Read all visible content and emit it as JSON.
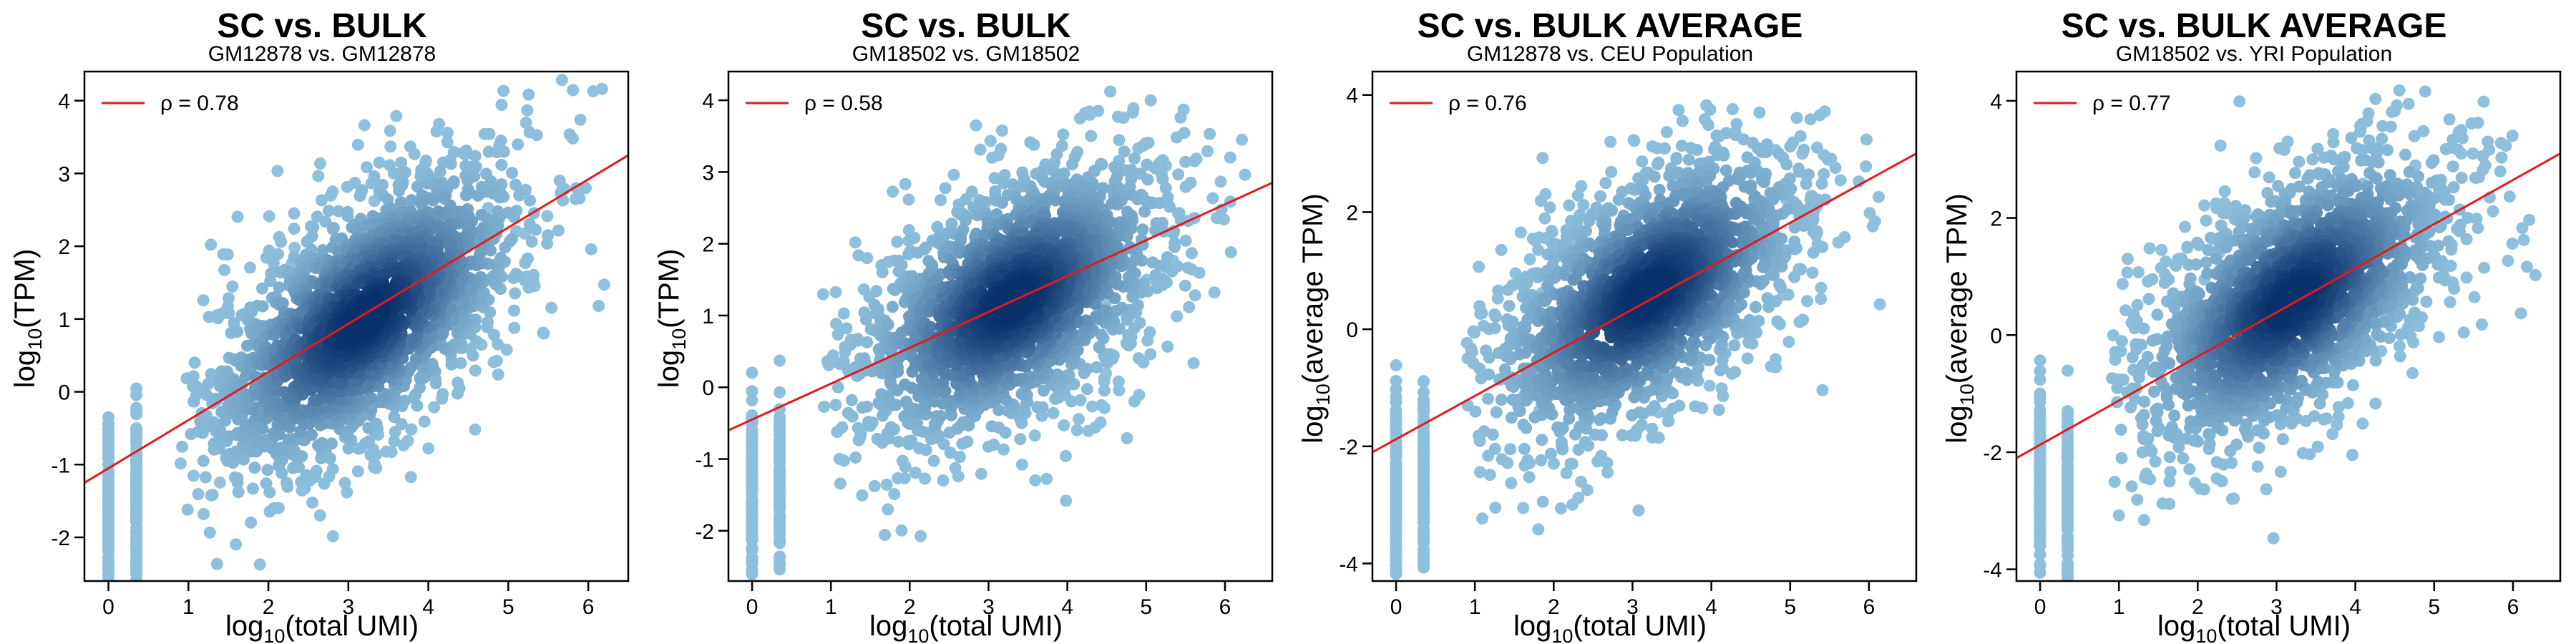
{
  "chart_data": [
    {
      "type": "scatter",
      "title": "SC vs. BULK",
      "subtitle": "GM12878 vs. GM12878",
      "xlabel": "log10(total UMI)",
      "ylabel": "log10(TPM)",
      "xlabel_parts": {
        "base": "log",
        "sub": "10",
        "rest": "(total UMI)"
      },
      "ylabel_parts": {
        "base": "log",
        "sub": "10",
        "rest": "(TPM)"
      },
      "xlim": [
        -0.3,
        6.5
      ],
      "ylim": [
        -2.6,
        4.4
      ],
      "xticks": [
        0,
        1,
        2,
        3,
        4,
        5,
        6
      ],
      "yticks": [
        -2,
        -1,
        0,
        1,
        2,
        3,
        4
      ],
      "legend": {
        "text": "ρ = 0.78",
        "position": "top-left",
        "line_color": "#e31a1c"
      },
      "regression_line": {
        "x": [
          -0.3,
          6.5
        ],
        "y": [
          -1.25,
          3.25
        ]
      },
      "density_center": {
        "x": 3.2,
        "y": 1.0
      },
      "point_color": "#8fc1de",
      "dense_color": "#08306b",
      "cloud_bounds": {
        "x": [
          0.9,
          6.3
        ],
        "y": [
          -2.4,
          4.3
        ]
      }
    },
    {
      "type": "scatter",
      "title": "SC vs. BULK",
      "subtitle": "GM18502 vs. GM18502",
      "xlabel": "log10(total UMI)",
      "ylabel": "log10(TPM)",
      "xlabel_parts": {
        "base": "log",
        "sub": "10",
        "rest": "(total UMI)"
      },
      "ylabel_parts": {
        "base": "log",
        "sub": "10",
        "rest": "(TPM)"
      },
      "xlim": [
        -0.3,
        6.6
      ],
      "ylim": [
        -2.7,
        4.4
      ],
      "xticks": [
        0,
        1,
        2,
        3,
        4,
        5,
        6
      ],
      "yticks": [
        -2,
        -1,
        0,
        1,
        2,
        3,
        4
      ],
      "legend": {
        "text": "ρ = 0.58",
        "position": "top-left",
        "line_color": "#e31a1c"
      },
      "regression_line": {
        "x": [
          -0.3,
          6.6
        ],
        "y": [
          -0.6,
          2.85
        ]
      },
      "density_center": {
        "x": 3.3,
        "y": 1.2
      },
      "point_color": "#8fc1de",
      "dense_color": "#08306b",
      "cloud_bounds": {
        "x": [
          0.9,
          6.3
        ],
        "y": [
          -2.6,
          4.3
        ]
      }
    },
    {
      "type": "scatter",
      "title": "SC vs. BULK AVERAGE",
      "subtitle": "GM12878 vs. CEU Population",
      "xlabel": "log10(total UMI)",
      "ylabel": "log10(average TPM)",
      "xlabel_parts": {
        "base": "log",
        "sub": "10",
        "rest": "(total UMI)"
      },
      "ylabel_parts": {
        "base": "log",
        "sub": "10",
        "rest": "(average TPM)"
      },
      "xlim": [
        -0.3,
        6.6
      ],
      "ylim": [
        -4.3,
        4.4
      ],
      "xticks": [
        0,
        1,
        2,
        3,
        4,
        5,
        6
      ],
      "yticks": [
        -4,
        -2,
        0,
        2,
        4
      ],
      "legend": {
        "text": "ρ = 0.76",
        "position": "top-left",
        "line_color": "#e31a1c"
      },
      "regression_line": {
        "x": [
          -0.3,
          6.6
        ],
        "y": [
          -2.1,
          3.0
        ]
      },
      "density_center": {
        "x": 3.2,
        "y": 0.6
      },
      "point_color": "#8fc1de",
      "dense_color": "#08306b",
      "cloud_bounds": {
        "x": [
          0.9,
          6.3
        ],
        "y": [
          -3.6,
          3.9
        ]
      }
    },
    {
      "type": "scatter",
      "title": "SC vs. BULK AVERAGE",
      "subtitle": "GM18502 vs. YRI Population",
      "xlabel": "log10(total UMI)",
      "ylabel": "log10(average TPM)",
      "xlabel_parts": {
        "base": "log",
        "sub": "10",
        "rest": "(total UMI)"
      },
      "ylabel_parts": {
        "base": "log",
        "sub": "10",
        "rest": "(average TPM)"
      },
      "xlim": [
        -0.3,
        6.6
      ],
      "ylim": [
        -4.2,
        4.5
      ],
      "xticks": [
        0,
        1,
        2,
        3,
        4,
        5,
        6
      ],
      "yticks": [
        -4,
        -2,
        0,
        2,
        4
      ],
      "legend": {
        "text": "ρ = 0.77",
        "position": "top-left",
        "line_color": "#e31a1c"
      },
      "regression_line": {
        "x": [
          -0.3,
          6.6
        ],
        "y": [
          -2.1,
          3.1
        ]
      },
      "density_center": {
        "x": 3.2,
        "y": 0.6
      },
      "point_color": "#8fc1de",
      "dense_color": "#08306b",
      "cloud_bounds": {
        "x": [
          0.9,
          6.3
        ],
        "y": [
          -3.6,
          4.2
        ]
      }
    }
  ]
}
